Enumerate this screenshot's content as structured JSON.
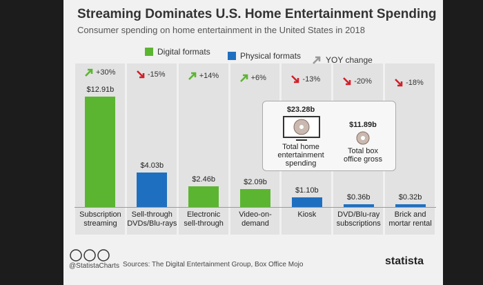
{
  "chart_data": {
    "type": "bar",
    "title": "Streaming Dominates U.S. Home Entertainment Spending",
    "subtitle": "Consumer spending on home entertainment in the United States in 2018",
    "categories": [
      "Subscription\nstreaming",
      "Sell-through\nDVDs/Blu-rays",
      "Electronic\nsell-through",
      "Video-on-\ndemand",
      "Kiosk",
      "DVD/Blu-ray\nsubscriptions",
      "Brick and\nmortar rental"
    ],
    "series": [
      {
        "name": "Digital formats",
        "color": "#5cb531",
        "values": [
          12.91,
          null,
          2.46,
          2.09,
          null,
          null,
          null
        ],
        "value_labels": [
          "$12.91b",
          null,
          "$2.46b",
          "$2.09b",
          null,
          null,
          null
        ]
      },
      {
        "name": "Physical formats",
        "color": "#1f6fc0",
        "values": [
          null,
          4.03,
          null,
          null,
          1.1,
          0.36,
          0.32
        ],
        "value_labels": [
          null,
          "$4.03b",
          null,
          null,
          "$1.10b",
          "$0.36b",
          "$0.32b"
        ]
      }
    ],
    "yoy": {
      "name": "YOY change",
      "color": "#9a9a9a",
      "up_color": "#5cb531",
      "down_color": "#d0202a",
      "values": [
        30,
        -15,
        14,
        6,
        -13,
        -20,
        -18
      ],
      "value_labels": [
        "+30%",
        "-15%",
        "+14%",
        "+6%",
        "-13%",
        "-20%",
        "-18%"
      ]
    },
    "inset": [
      {
        "value_label": "$23.28b",
        "label": "Total home\nentertainment\nspending"
      },
      {
        "value_label": "$11.89b",
        "label": "Total box\noffice gross"
      }
    ],
    "footer": {
      "handle": "@StatistaCharts",
      "sources": "Sources: The Digital Entertainment Group, Box Office Mojo",
      "brand": "statista"
    }
  }
}
